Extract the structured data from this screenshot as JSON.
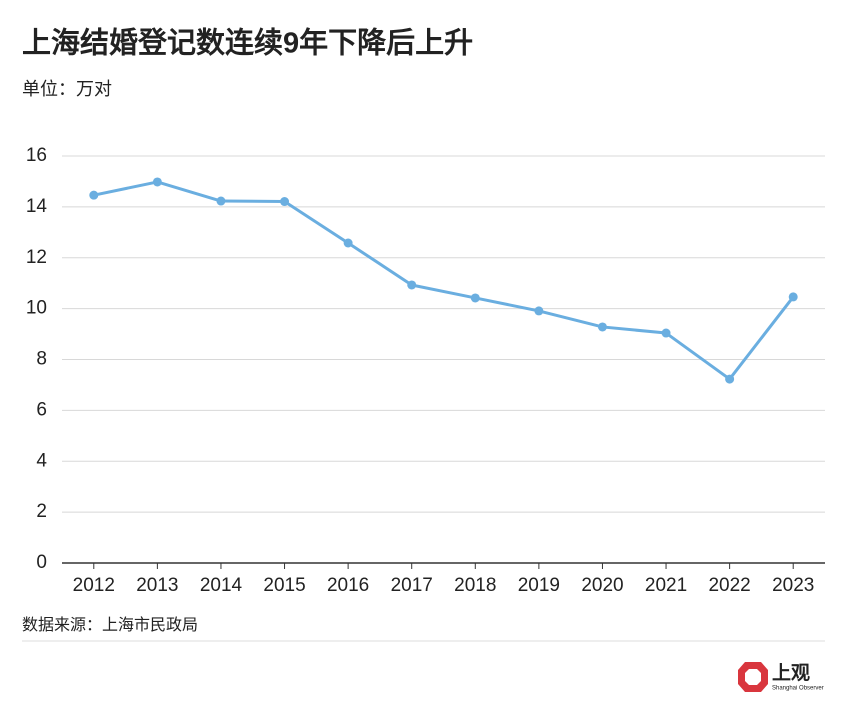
{
  "chart_data": {
    "type": "line",
    "title": "上海结婚登记数连续9年下降后上升",
    "subtitle": "单位：万对",
    "source": "数据来源：上海市民政局",
    "brand": "上观",
    "brand_sub": "Shanghai Observer",
    "categories": [
      "2012",
      "2013",
      "2014",
      "2015",
      "2016",
      "2017",
      "2018",
      "2019",
      "2020",
      "2021",
      "2022",
      "2023"
    ],
    "values": [
      14.46,
      14.98,
      14.23,
      14.21,
      12.58,
      10.93,
      10.42,
      9.91,
      9.28,
      9.04,
      7.23,
      10.46
    ],
    "color": "#6aaee0",
    "ylim": [
      0,
      16
    ],
    "yticks": [
      0,
      2,
      4,
      6,
      8,
      10,
      12,
      14,
      16
    ],
    "grid": true
  }
}
